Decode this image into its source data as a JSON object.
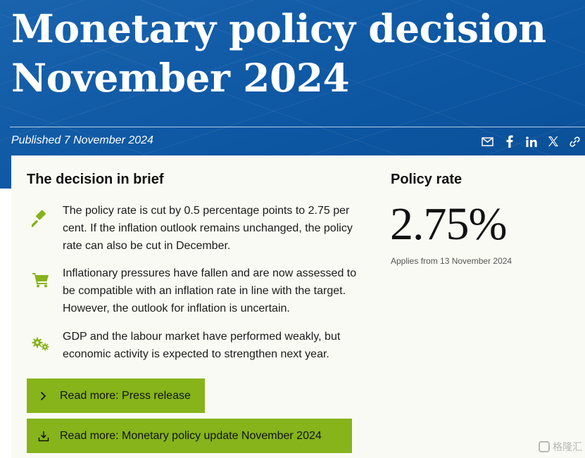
{
  "header": {
    "title": "Monetary policy decision November 2024",
    "published": "Published 7 November 2024",
    "share_icons": [
      "email-icon",
      "facebook-icon",
      "linkedin-icon",
      "x-icon",
      "link-icon"
    ]
  },
  "brief": {
    "title": "The decision in brief",
    "items": [
      {
        "icon": "gavel-icon",
        "text": "The policy rate is cut by 0.5 percentage points to 2.75 per cent. If the inflation outlook remains unchanged, the policy rate can also be cut in December."
      },
      {
        "icon": "shopping-cart-icon",
        "text": "Inflationary pressures have fallen and are now assessed to be compatible with an inflation rate in line with the target. However, the outlook for inflation is uncertain."
      },
      {
        "icon": "gears-icon",
        "text": "GDP and the labour market have performed weakly, but economic activity is expected to strengthen next year."
      }
    ],
    "buttons": [
      {
        "icon": "chevron-right-icon",
        "label": "Read more: Press release"
      },
      {
        "icon": "download-icon",
        "label": "Read more: Monetary policy update November 2024"
      }
    ]
  },
  "policy_rate": {
    "title": "Policy rate",
    "value": "2.75%",
    "note": "Applies from 13 November 2024"
  },
  "watermark": {
    "text": "格隆汇"
  },
  "colors": {
    "header_blue": "#0d57a3",
    "accent_green": "#86b41a",
    "card_bg": "#fafaf4"
  }
}
